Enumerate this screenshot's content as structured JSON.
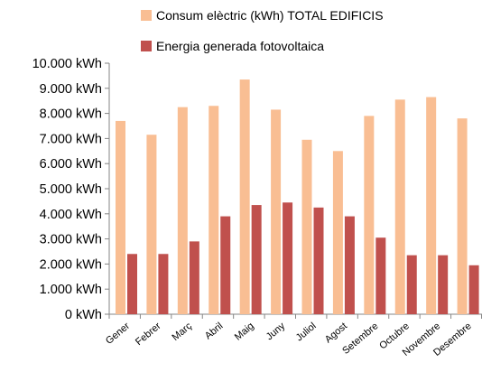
{
  "chart_data": {
    "type": "bar",
    "categories": [
      "Gener",
      "Febrer",
      "Març",
      "Abril",
      "Maig",
      "Juny",
      "Juliol",
      "Agost",
      "Setembre",
      "Octubre",
      "Novembre",
      "Desembre"
    ],
    "series": [
      {
        "name": "Consum elèctric (kWh) TOTAL EDIFICIS",
        "color": "#F9BE93",
        "values": [
          7700,
          7150,
          8250,
          8300,
          9350,
          8150,
          6950,
          6500,
          7900,
          8550,
          8650,
          7800
        ]
      },
      {
        "name": "Energia generada fotovoltaica",
        "color": "#C0504D",
        "values": [
          2400,
          2400,
          2900,
          3900,
          4350,
          4450,
          4250,
          3900,
          3050,
          2350,
          2350,
          1950
        ]
      }
    ],
    "ylim": [
      0,
      10000
    ],
    "yticks": [
      "0 kWh",
      "1.000 kWh",
      "2.000 kWh",
      "3.000 kWh",
      "4.000 kWh",
      "5.000 kWh",
      "6.000 kWh",
      "7.000 kWh",
      "8.000 kWh",
      "9.000 kWh",
      "10.000 kWh"
    ],
    "grid": false,
    "legend_position": "top"
  }
}
